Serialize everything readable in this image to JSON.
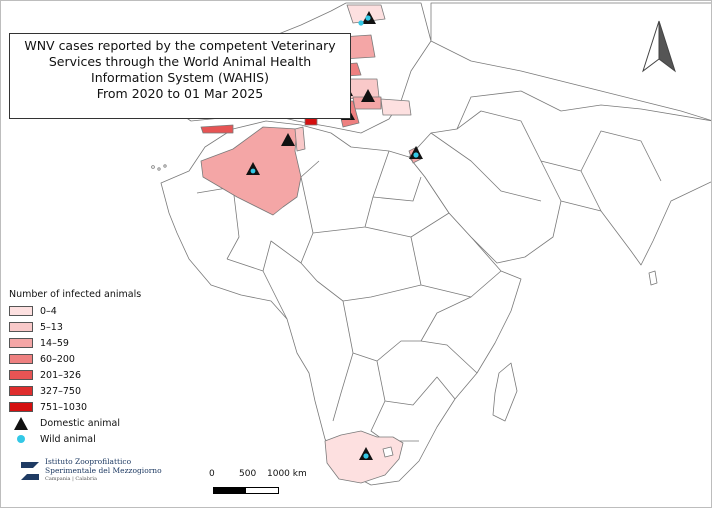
{
  "title": {
    "line1": "WNV cases reported by the competent Veterinary",
    "line2": "Services through the World Animal Health",
    "line3": "Information System (WAHIS)",
    "line4": "From 2020 to 01 Mar 2025"
  },
  "legend": {
    "title": "Number of infected animals",
    "classes": [
      {
        "label": "0–4",
        "color": "#fde0e0"
      },
      {
        "label": "5–13",
        "color": "#f9c9c9"
      },
      {
        "label": "14–59",
        "color": "#f4a6a6"
      },
      {
        "label": "60–200",
        "color": "#ee8080"
      },
      {
        "label": "201–326",
        "color": "#e65454"
      },
      {
        "label": "327–750",
        "color": "#df2d2d"
      },
      {
        "label": "751–1030",
        "color": "#d40f0f"
      }
    ],
    "domestic_label": "Domestic animal",
    "wild_label": "Wild animal",
    "domestic_symbol": "triangle-icon",
    "wild_symbol": "circle-icon",
    "wild_color": "#33c8e6"
  },
  "scale": {
    "labels": [
      "0",
      "500",
      "1000 km"
    ]
  },
  "logo": {
    "line1": "Istituto Zooprofilattico",
    "line2": "Sperimentale del Mezzogiorno",
    "line3": "Campania | Calabria",
    "color": "#1f3b63"
  },
  "north_arrow": "north-arrow-icon"
}
